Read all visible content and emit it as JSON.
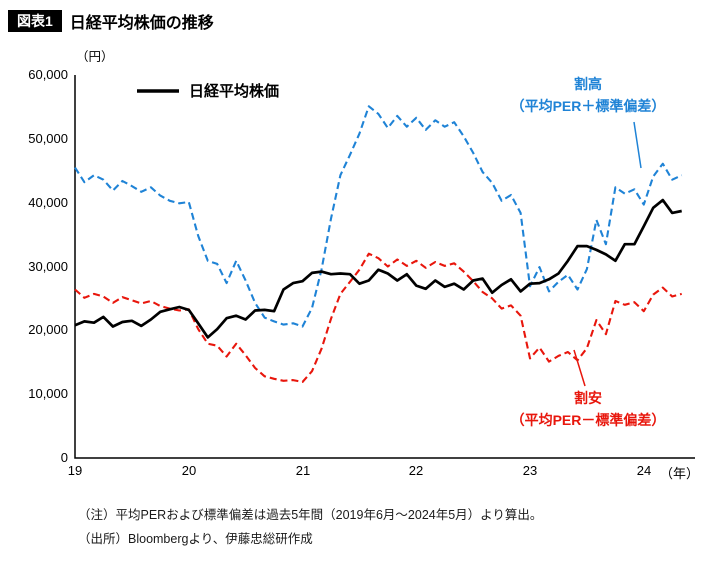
{
  "header": {
    "badge": "図表1",
    "title": "日経平均株価の推移"
  },
  "notes": {
    "line1": "（注）平均PERおよび標準偏差は過去5年間（2019年6月～2024年5月）より算出。",
    "line2": "（出所）Bloombergより、伊藤忠総研作成"
  },
  "chart_data": {
    "type": "line",
    "title": "日経平均株価の推移",
    "y_unit_label": "（円）",
    "x_unit_label": "（年）",
    "ylim": [
      0,
      60000
    ],
    "grid": false,
    "legend_label": "日経平均株価",
    "legend_position": "top-left-inside",
    "annotations": {
      "overvalued": {
        "line1": "割高",
        "line2": "（平均PER＋標準偏差）",
        "color": "#1f83d6"
      },
      "undervalued": {
        "line1": "割安",
        "line2": "（平均PER－標準偏差）",
        "color": "#e8160c"
      }
    },
    "y_ticks": [
      {
        "label": "60,000",
        "value": 60000
      },
      {
        "label": "50,000",
        "value": 50000
      },
      {
        "label": "40,000",
        "value": 40000
      },
      {
        "label": "30,000",
        "value": 30000
      },
      {
        "label": "20,000",
        "value": 20000
      },
      {
        "label": "10,000",
        "value": 10000
      },
      {
        "label": "0",
        "value": 0
      }
    ],
    "x_ticks": [
      {
        "label": "19",
        "value": 19
      },
      {
        "label": "20",
        "value": 20
      },
      {
        "label": "21",
        "value": 21
      },
      {
        "label": "22",
        "value": 22
      },
      {
        "label": "23",
        "value": 23
      },
      {
        "label": "24",
        "value": 24
      }
    ],
    "x": [
      19,
      19.083,
      19.167,
      19.25,
      19.333,
      19.417,
      19.5,
      19.583,
      19.667,
      19.75,
      19.833,
      19.917,
      20,
      20.083,
      20.167,
      20.25,
      20.333,
      20.417,
      20.5,
      20.583,
      20.667,
      20.75,
      20.833,
      20.917,
      21,
      21.083,
      21.167,
      21.25,
      21.333,
      21.417,
      21.5,
      21.583,
      21.667,
      21.75,
      21.833,
      21.917,
      22,
      22.083,
      22.167,
      22.25,
      22.333,
      22.417,
      22.5,
      22.583,
      22.667,
      22.75,
      22.833,
      22.917,
      23,
      23.083,
      23.167,
      23.25,
      23.333,
      23.417,
      23.5,
      23.583,
      23.667,
      23.75,
      23.833,
      23.917,
      24,
      24.083,
      24.167,
      24.25,
      24.333
    ],
    "series": [
      {
        "name": "日経平均株価",
        "color": "#000000",
        "style": "solid",
        "values": [
          20800,
          21400,
          21200,
          22100,
          20600,
          21300,
          21500,
          20700,
          21700,
          22900,
          23300,
          23650,
          23200,
          21100,
          18900,
          20200,
          21900,
          22300,
          21700,
          23100,
          23200,
          23000,
          26400,
          27400,
          27700,
          29000,
          29200,
          28800,
          28900,
          28800,
          27300,
          27800,
          29500,
          28900,
          27800,
          28800,
          27000,
          26500,
          27800,
          26800,
          27300,
          26400,
          27800,
          28100,
          25900,
          27100,
          28000,
          26100,
          27300,
          27400,
          28000,
          28900,
          30900,
          33200,
          33200,
          32600,
          31900,
          30900,
          33500,
          33500,
          36300,
          39200,
          40400,
          38400,
          38700
        ]
      },
      {
        "name": "割高（平均PER＋標準偏差）",
        "color": "#1f83d6",
        "style": "dashed",
        "values": [
          45500,
          43200,
          44300,
          43600,
          41900,
          43400,
          42600,
          41700,
          42400,
          41100,
          40300,
          39900,
          40100,
          34800,
          30900,
          30400,
          27400,
          30900,
          27800,
          24300,
          22000,
          21400,
          20900,
          21100,
          20600,
          23500,
          29500,
          37500,
          44300,
          47500,
          50800,
          55100,
          53900,
          51700,
          53600,
          51900,
          53300,
          51400,
          52900,
          51900,
          52600,
          50400,
          47800,
          44800,
          43100,
          40300,
          41200,
          38400,
          26900,
          29900,
          26100,
          27600,
          28700,
          26400,
          29600,
          37300,
          33500,
          42400,
          41400,
          42100,
          39700,
          44100,
          46100,
          43600,
          44300
        ]
      },
      {
        "name": "割安（平均PER－標準偏差）",
        "color": "#e8160c",
        "style": "dashed",
        "values": [
          26400,
          25100,
          25700,
          25300,
          24300,
          25200,
          24700,
          24200,
          24600,
          23800,
          23400,
          23100,
          23300,
          20200,
          17900,
          17600,
          15900,
          17900,
          16100,
          14100,
          12800,
          12400,
          12100,
          12200,
          11900,
          13600,
          17100,
          21800,
          25700,
          27600,
          29500,
          32000,
          31300,
          30000,
          31100,
          30100,
          30900,
          29800,
          30700,
          30100,
          30500,
          29200,
          27700,
          26000,
          25000,
          23400,
          23900,
          22300,
          15600,
          17300,
          15100,
          16000,
          16600,
          15300,
          17200,
          21600,
          19400,
          24600,
          24000,
          24400,
          23000,
          25600,
          26700,
          25300,
          25700
        ]
      }
    ]
  }
}
